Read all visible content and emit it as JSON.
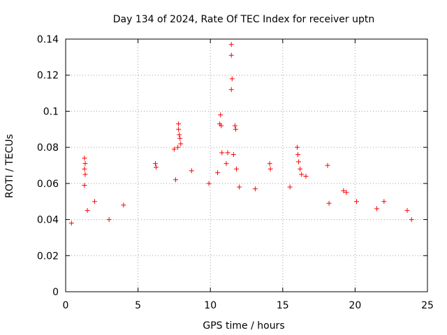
{
  "chart_data": {
    "type": "scatter",
    "title": "Day 134 of 2024, Rate Of TEC Index for receiver uptn",
    "xlabel": "GPS time / hours",
    "ylabel": "ROTI / TECUs",
    "xlim": [
      0,
      25
    ],
    "ylim": [
      0,
      0.14
    ],
    "x_ticks": [
      0,
      5,
      10,
      15,
      20,
      25
    ],
    "x_tick_labels": [
      "0",
      "5",
      "10",
      "15",
      "20",
      "25"
    ],
    "y_ticks": [
      0,
      0.02,
      0.04,
      0.06,
      0.08,
      0.1,
      0.12,
      0.14
    ],
    "y_tick_labels": [
      "0",
      "0.02",
      "0.04",
      "0.06",
      "0.08",
      "0.1",
      "0.12",
      "0.14"
    ],
    "grid": true,
    "marker": "+",
    "color": "#ff0000",
    "series": [
      {
        "name": "",
        "points": [
          [
            11.45,
            0.137
          ],
          [
            11.45,
            0.131
          ],
          [
            11.5,
            0.118
          ],
          [
            11.45,
            0.112
          ],
          [
            10.7,
            0.098
          ],
          [
            10.65,
            0.093
          ],
          [
            10.75,
            0.092
          ],
          [
            11.7,
            0.092
          ],
          [
            11.75,
            0.09
          ],
          [
            7.8,
            0.093
          ],
          [
            7.8,
            0.09
          ],
          [
            7.85,
            0.087
          ],
          [
            7.9,
            0.085
          ],
          [
            7.95,
            0.082
          ],
          [
            7.75,
            0.08
          ],
          [
            7.5,
            0.079
          ],
          [
            16.0,
            0.08
          ],
          [
            10.8,
            0.077
          ],
          [
            11.2,
            0.077
          ],
          [
            11.6,
            0.076
          ],
          [
            11.1,
            0.071
          ],
          [
            1.3,
            0.074
          ],
          [
            1.35,
            0.071
          ],
          [
            1.3,
            0.068
          ],
          [
            1.35,
            0.065
          ],
          [
            1.3,
            0.059
          ],
          [
            6.2,
            0.071
          ],
          [
            6.25,
            0.069
          ],
          [
            8.7,
            0.067
          ],
          [
            14.1,
            0.071
          ],
          [
            14.15,
            0.068
          ],
          [
            16.05,
            0.076
          ],
          [
            16.1,
            0.072
          ],
          [
            16.2,
            0.068
          ],
          [
            16.3,
            0.065
          ],
          [
            16.6,
            0.064
          ],
          [
            18.1,
            0.07
          ],
          [
            11.8,
            0.068
          ],
          [
            10.5,
            0.066
          ],
          [
            9.9,
            0.06
          ],
          [
            7.6,
            0.062
          ],
          [
            12.0,
            0.058
          ],
          [
            13.1,
            0.057
          ],
          [
            15.5,
            0.058
          ],
          [
            19.2,
            0.056
          ],
          [
            19.4,
            0.055
          ],
          [
            22.0,
            0.05
          ],
          [
            20.1,
            0.05
          ],
          [
            4.0,
            0.048
          ],
          [
            2.0,
            0.05
          ],
          [
            1.5,
            0.045
          ],
          [
            3.0,
            0.04
          ],
          [
            23.6,
            0.045
          ],
          [
            23.9,
            0.04
          ],
          [
            0.4,
            0.038
          ],
          [
            21.5,
            0.046
          ],
          [
            18.2,
            0.049
          ]
        ]
      }
    ]
  }
}
